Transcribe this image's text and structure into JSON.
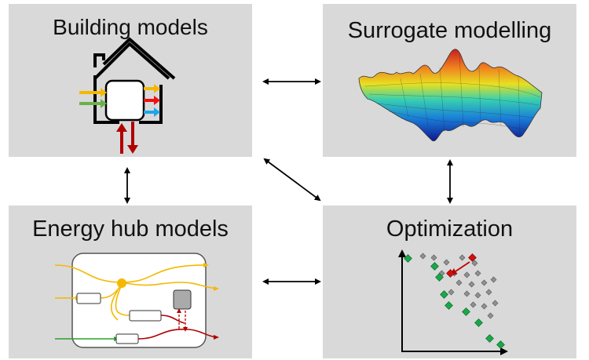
{
  "panels": {
    "building": {
      "title": "Building models"
    },
    "surrogate": {
      "title": "Surrogate modelling"
    },
    "energy_hub": {
      "title": "Energy hub models"
    },
    "optimization": {
      "title": "Optimization"
    }
  },
  "colors": {
    "panel_bg": "#d9d9d9",
    "arrow": "#000000",
    "yellow": "#f5b800",
    "green": "#6ab04c",
    "red": "#cc0000",
    "blue": "#1ea7e8",
    "dark_red": "#b00000",
    "pareto_green": "#18a84a",
    "dominated_gray": "#909090"
  },
  "icons": {
    "house": "house-icon",
    "surface": "3d-surface-plot-icon",
    "hub": "energy-hub-diagram-icon",
    "pareto": "pareto-front-plot-icon"
  }
}
